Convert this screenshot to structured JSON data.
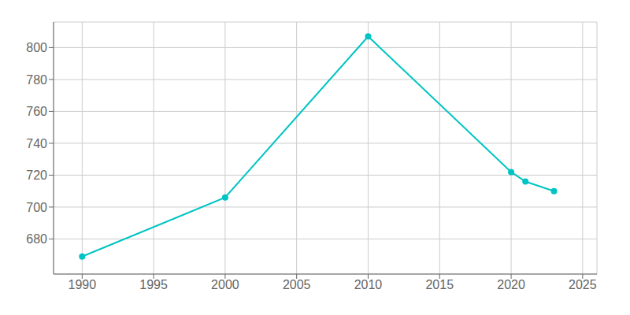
{
  "chart_data": {
    "type": "line",
    "x": [
      1990,
      2000,
      2010,
      2020,
      2021,
      2023
    ],
    "values": [
      669,
      706,
      807,
      722,
      716,
      710
    ],
    "color": "#00c4c4",
    "marker": "circle",
    "xlim": [
      1988,
      2026
    ],
    "ylim": [
      658,
      816
    ],
    "xticks": [
      1990,
      1995,
      2000,
      2005,
      2010,
      2015,
      2020,
      2025
    ],
    "yticks": [
      680,
      700,
      720,
      740,
      760,
      780,
      800
    ],
    "grid": true
  }
}
